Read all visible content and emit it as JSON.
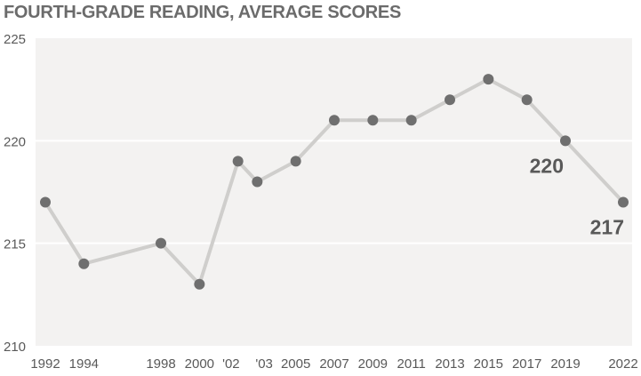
{
  "chart_data": {
    "type": "line",
    "title": "FOURTH-GRADE READING, AVERAGE SCORES",
    "xlabel": "",
    "ylabel": "",
    "x": [
      1992,
      1994,
      1998,
      2000,
      2002,
      2003,
      2005,
      2007,
      2009,
      2011,
      2013,
      2015,
      2017,
      2019,
      2022
    ],
    "x_tick_labels": [
      "1992",
      "1994",
      "1998",
      "2000",
      "'02",
      "'03",
      "2005",
      "2007",
      "2009",
      "2011",
      "2013",
      "2015",
      "2017",
      "2019",
      "2022"
    ],
    "series": [
      {
        "values": [
          217,
          214,
          215,
          213,
          219,
          218,
          219,
          221,
          221,
          221,
          222,
          223,
          222,
          220,
          217
        ]
      }
    ],
    "ylim": [
      210,
      225
    ],
    "y_ticks": [
      210,
      215,
      220,
      225
    ],
    "grid": true,
    "annotations": [
      {
        "x": 2019,
        "y": 220,
        "text": "220"
      },
      {
        "x": 2022,
        "y": 217,
        "text": "217"
      }
    ],
    "colors": {
      "plot_background": "#f3f2f1",
      "gridline": "#ffffff",
      "line": "#cfcecc",
      "marker": "#6f6f6f",
      "text": "#595959"
    }
  }
}
